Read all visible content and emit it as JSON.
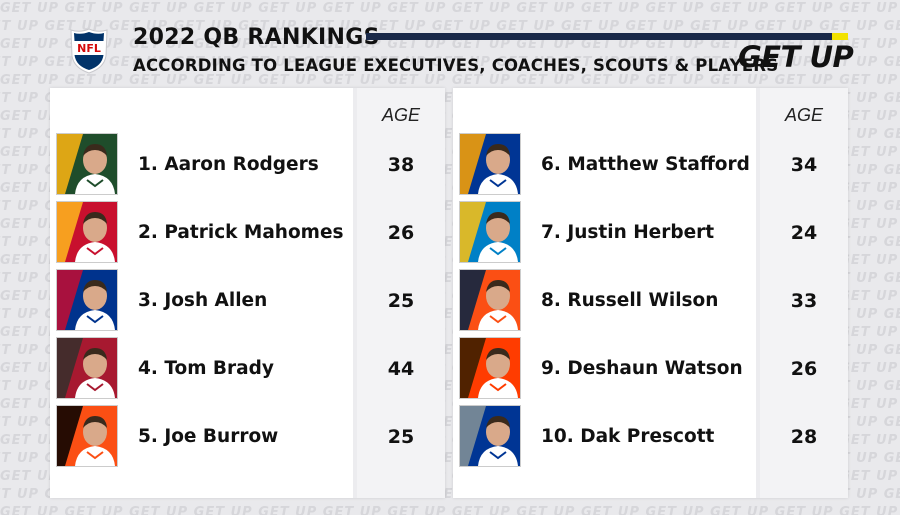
{
  "header": {
    "title": "2022 QB RANKINGS",
    "subtitle": "ACCORDING TO LEAGUE EXECUTIVES, COACHES, SCOUTS & PLAYERS",
    "brand": "GET UP",
    "league_logo_text": "NFL",
    "pattern_text": "GET UP"
  },
  "columns": {
    "age_header": "AGE"
  },
  "left_list": [
    {
      "rank_name": "1. Aaron Rodgers",
      "age": "38",
      "team_icon": "packers-logo-icon",
      "team_color": "#1f4d2b",
      "accent": "#ffb612"
    },
    {
      "rank_name": "2. Patrick Mahomes",
      "age": "26",
      "team_icon": "chiefs-logo-icon",
      "team_color": "#c8102e",
      "accent": "#ffb81c"
    },
    {
      "rank_name": "3. Josh Allen",
      "age": "25",
      "team_icon": "bills-logo-icon",
      "team_color": "#00338d",
      "accent": "#c60c30"
    },
    {
      "rank_name": "4. Tom Brady",
      "age": "44",
      "team_icon": "buccaneers-logo-icon",
      "team_color": "#a71930",
      "accent": "#34302b"
    },
    {
      "rank_name": "5. Joe Burrow",
      "age": "25",
      "team_icon": "bengals-logo-icon",
      "team_color": "#fb4f14",
      "accent": "#000000"
    }
  ],
  "right_list": [
    {
      "rank_name": "6. Matthew Stafford",
      "age": "34",
      "team_icon": "rams-logo-icon",
      "team_color": "#003594",
      "accent": "#ffa300"
    },
    {
      "rank_name": "7. Justin Herbert",
      "age": "24",
      "team_icon": "chargers-logo-icon",
      "team_color": "#0080c6",
      "accent": "#ffc20e"
    },
    {
      "rank_name": "8. Russell Wilson",
      "age": "33",
      "team_icon": "broncos-logo-icon",
      "team_color": "#fb4f14",
      "accent": "#002244"
    },
    {
      "rank_name": "9. Deshaun Watson",
      "age": "26",
      "team_icon": "browns-logo-icon",
      "team_color": "#ff3c00",
      "accent": "#311d00"
    },
    {
      "rank_name": "10. Dak Prescott",
      "age": "28",
      "team_icon": "cowboys-logo-icon",
      "team_color": "#003594",
      "accent": "#869397"
    }
  ]
}
